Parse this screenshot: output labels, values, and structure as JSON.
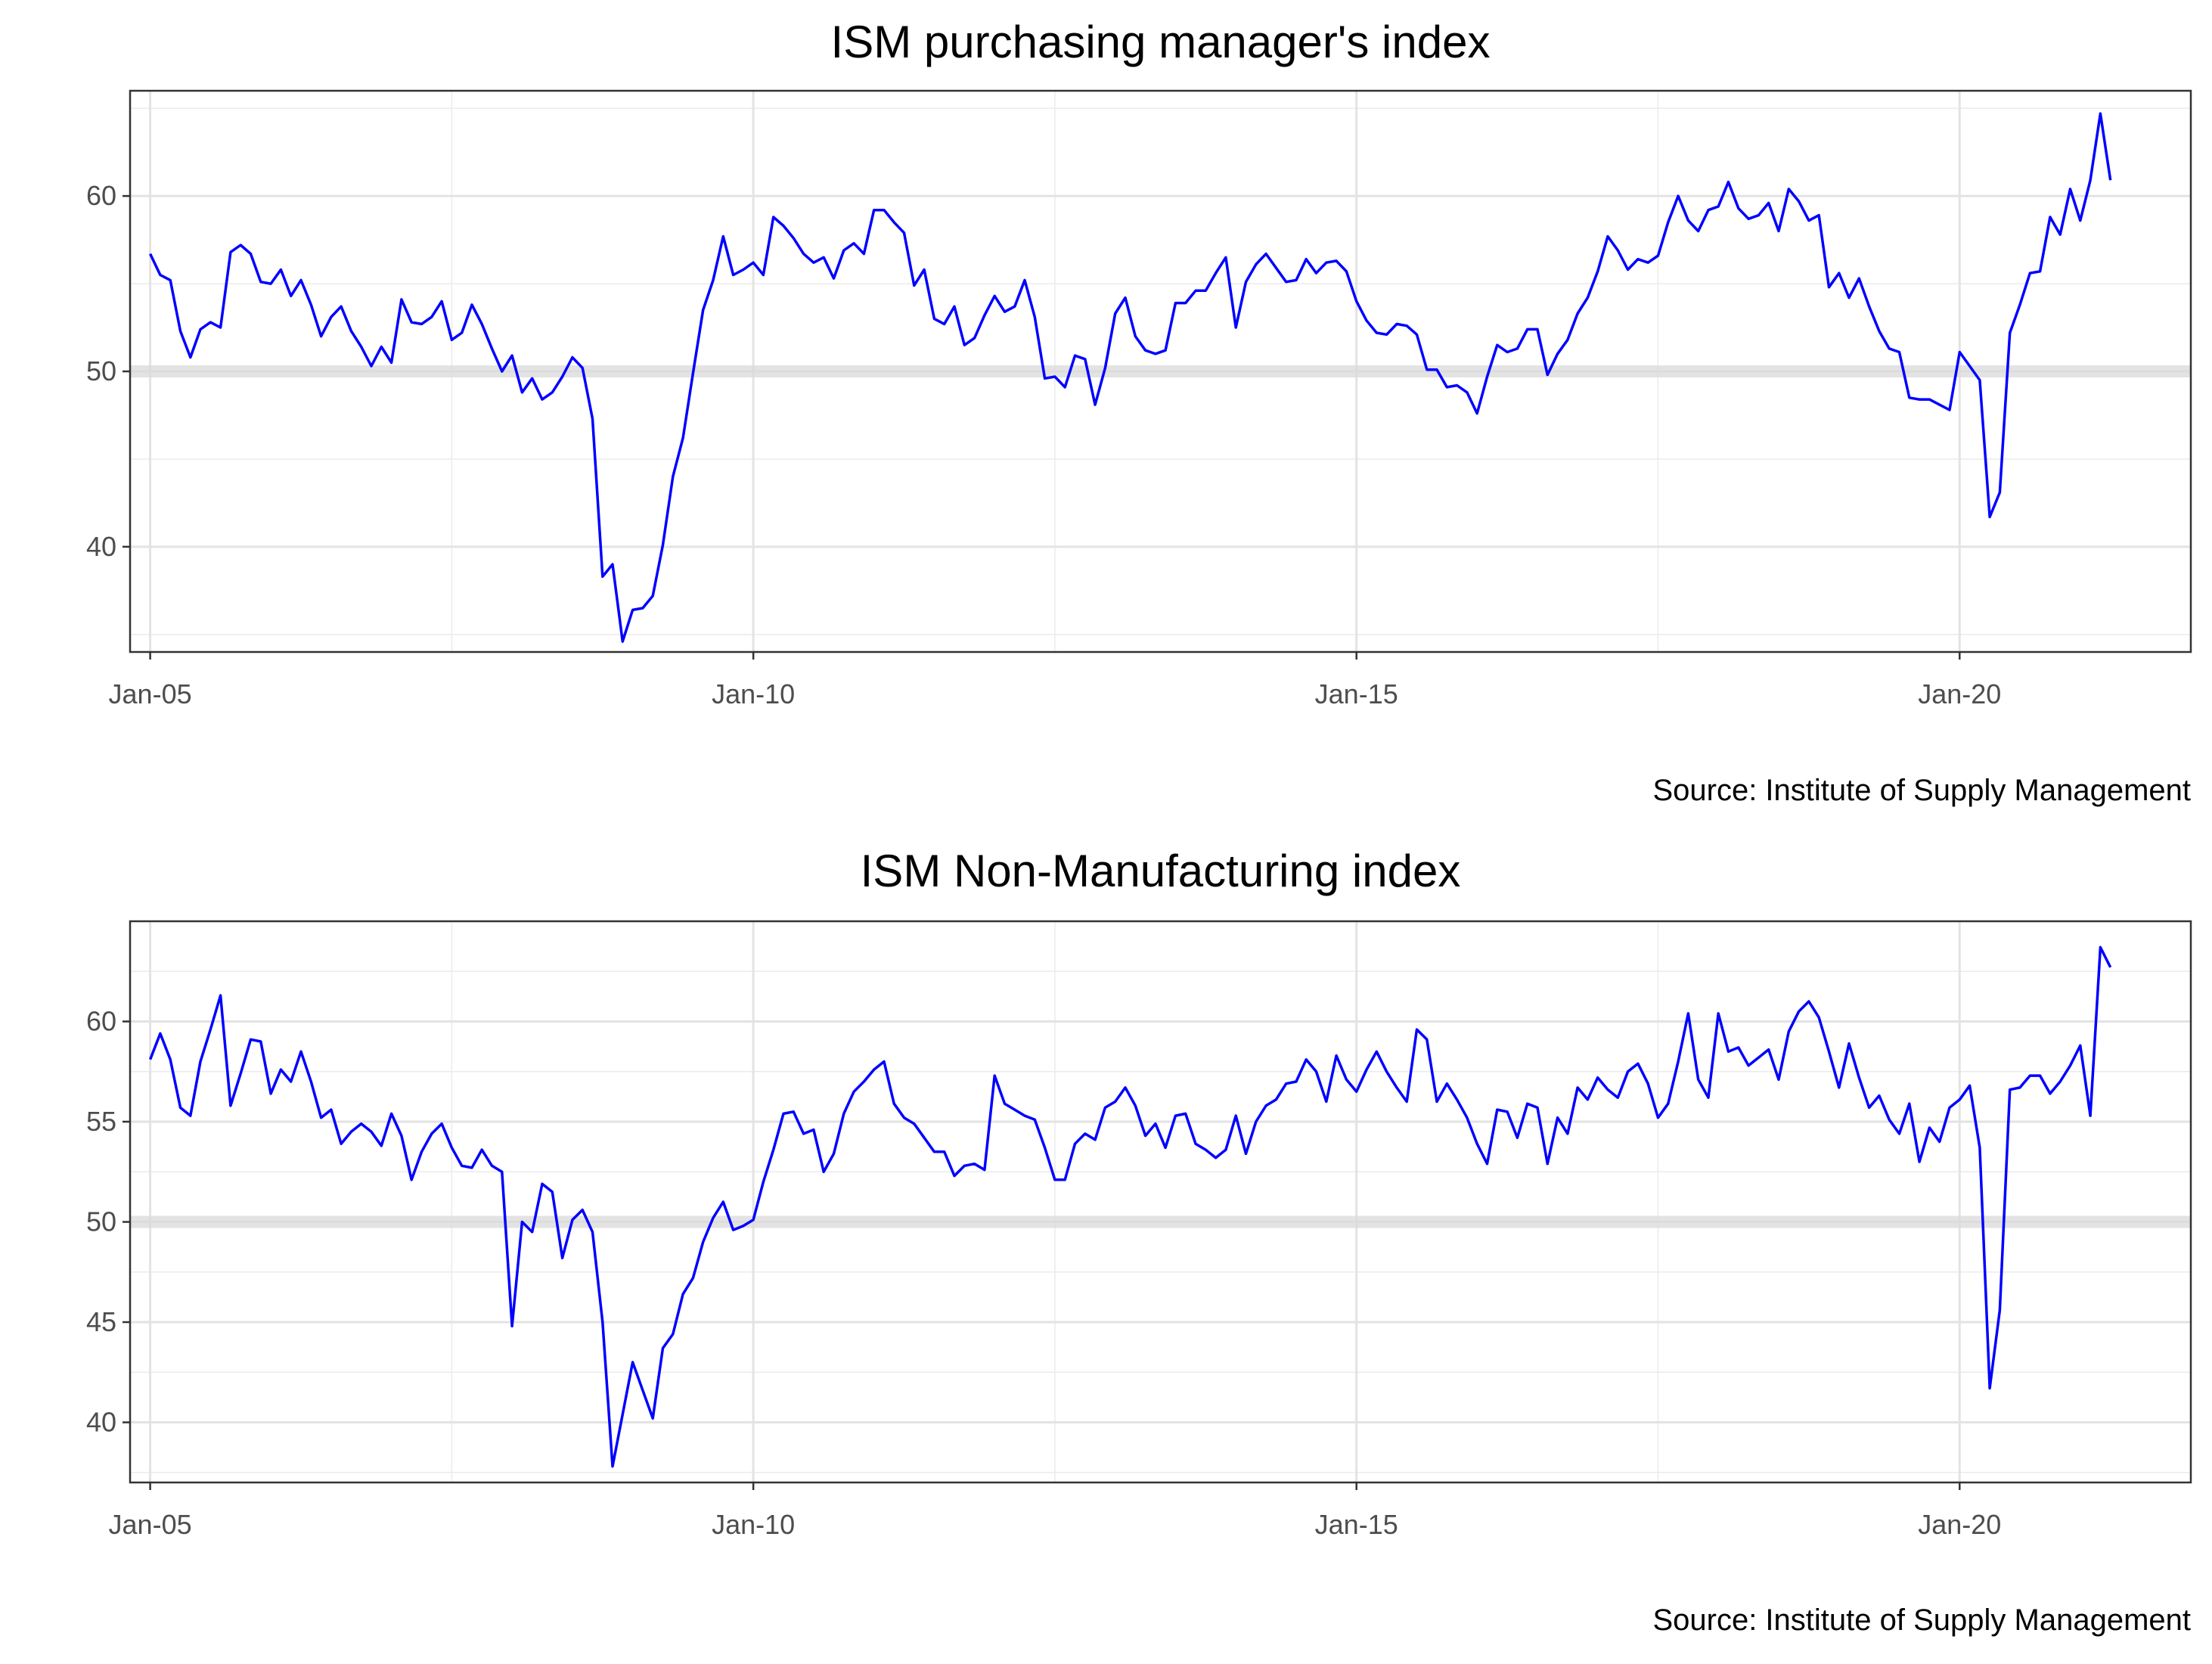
{
  "chart_data": [
    {
      "type": "line",
      "title": "ISM purchasing manager's index",
      "caption": "Source: Institute of Supply Management",
      "xlabel": "",
      "ylabel": "",
      "x_ticks": [
        "Jan-05",
        "Jan-10",
        "Jan-15",
        "Jan-20"
      ],
      "y_ticks": [
        40,
        50,
        60
      ],
      "ylim": [
        34,
        66
      ],
      "reference_line": 50,
      "grid": true,
      "line_color": "#0000ff",
      "series": [
        {
          "x_start": "2005-01",
          "values": [
            56.7,
            55.5,
            55.2,
            52.3,
            50.8,
            52.4,
            52.8,
            52.5,
            56.8,
            57.2,
            56.7,
            55.1,
            55.0,
            55.8,
            54.3,
            55.2,
            53.8,
            52.0,
            53.1,
            53.7,
            52.3,
            51.4,
            50.3,
            51.4,
            50.5,
            54.1,
            52.8,
            52.7,
            53.1,
            54.0,
            51.8,
            52.2,
            53.8,
            52.7,
            51.3,
            50.0,
            50.9,
            48.8,
            49.6,
            48.4,
            48.8,
            49.7,
            50.8,
            50.2,
            47.3,
            38.3,
            39.0,
            34.6,
            36.4,
            36.5,
            37.2,
            40.1,
            44.0,
            46.2,
            49.9,
            53.5,
            55.2,
            57.7,
            55.5,
            55.8,
            56.2,
            55.5,
            58.8,
            58.3,
            57.6,
            56.7,
            56.2,
            56.5,
            55.3,
            56.9,
            57.3,
            56.7,
            59.2,
            59.2,
            58.5,
            57.9,
            54.9,
            55.8,
            53.0,
            52.7,
            53.7,
            51.5,
            51.9,
            53.2,
            54.3,
            53.4,
            53.7,
            55.2,
            53.1,
            49.6,
            49.7,
            49.1,
            50.9,
            50.7,
            48.1,
            50.2,
            53.3,
            54.2,
            52.0,
            51.2,
            51.0,
            51.2,
            53.9,
            53.9,
            54.6,
            54.6,
            55.6,
            56.5,
            52.5,
            55.1,
            56.1,
            56.7,
            55.9,
            55.1,
            55.2,
            56.4,
            55.6,
            56.2,
            56.3,
            55.7,
            54.0,
            52.9,
            52.2,
            52.1,
            52.7,
            52.6,
            52.1,
            50.1,
            50.1,
            49.1,
            49.2,
            48.8,
            47.6,
            49.7,
            51.5,
            51.1,
            51.3,
            52.4,
            52.4,
            49.8,
            51.0,
            51.8,
            53.3,
            54.2,
            55.7,
            57.7,
            56.9,
            55.8,
            56.4,
            56.2,
            56.6,
            58.5,
            60.0,
            58.6,
            58.0,
            59.2,
            59.4,
            60.8,
            59.3,
            58.7,
            58.9,
            59.6,
            58.0,
            60.4,
            59.7,
            58.6,
            58.9,
            54.8,
            55.6,
            54.2,
            55.3,
            53.7,
            52.3,
            51.3,
            51.1,
            48.5,
            48.4,
            48.4,
            48.1,
            47.8,
            51.1,
            50.3,
            49.5,
            41.7,
            43.1,
            52.2,
            53.8,
            55.6,
            55.7,
            58.8,
            57.8,
            60.4,
            58.6,
            60.9,
            64.7,
            60.9
          ]
        }
      ]
    },
    {
      "type": "line",
      "title": "ISM Non-Manufacturing index",
      "caption": "Source: Institute of Supply Management",
      "xlabel": "",
      "ylabel": "",
      "x_ticks": [
        "Jan-05",
        "Jan-10",
        "Jan-15",
        "Jan-20"
      ],
      "y_ticks": [
        40,
        45,
        50,
        55,
        60
      ],
      "ylim": [
        37,
        65
      ],
      "reference_line": 50,
      "grid": true,
      "line_color": "#0000ff",
      "series": [
        {
          "x_start": "2005-01",
          "values": [
            58.1,
            59.4,
            58.1,
            55.7,
            55.3,
            58.0,
            59.6,
            61.3,
            55.8,
            57.4,
            59.1,
            59.0,
            56.4,
            57.6,
            57.0,
            58.5,
            57.0,
            55.2,
            55.6,
            53.9,
            54.5,
            54.9,
            54.5,
            53.8,
            55.4,
            54.3,
            52.1,
            53.5,
            54.4,
            54.9,
            53.7,
            52.8,
            52.7,
            53.6,
            52.8,
            52.5,
            44.8,
            50.0,
            49.5,
            51.9,
            51.5,
            48.2,
            50.1,
            50.6,
            49.5,
            45.0,
            37.8,
            40.4,
            43.0,
            41.6,
            40.2,
            43.7,
            44.4,
            46.4,
            47.2,
            49.0,
            50.2,
            51.0,
            49.6,
            49.8,
            50.1,
            52.0,
            53.6,
            55.4,
            55.5,
            54.4,
            54.6,
            52.5,
            53.4,
            55.4,
            56.5,
            57.0,
            57.6,
            58.0,
            55.9,
            55.2,
            54.9,
            54.2,
            53.5,
            53.5,
            52.3,
            52.8,
            52.9,
            52.6,
            57.3,
            55.9,
            55.6,
            55.3,
            55.1,
            53.7,
            52.1,
            52.1,
            53.9,
            54.4,
            54.1,
            55.7,
            56.0,
            56.7,
            55.8,
            54.3,
            54.9,
            53.7,
            55.3,
            55.4,
            53.9,
            53.6,
            53.2,
            53.6,
            55.3,
            53.4,
            55.0,
            55.8,
            56.1,
            56.9,
            57.0,
            58.1,
            57.5,
            56.0,
            58.3,
            57.1,
            56.5,
            57.6,
            58.5,
            57.5,
            56.7,
            56.0,
            59.6,
            59.1,
            56.0,
            56.9,
            56.1,
            55.2,
            53.9,
            52.9,
            55.6,
            55.5,
            54.2,
            55.9,
            55.7,
            52.9,
            55.2,
            54.4,
            56.7,
            56.1,
            57.2,
            56.6,
            56.2,
            57.5,
            57.9,
            56.9,
            55.2,
            55.9,
            58.0,
            60.4,
            57.1,
            56.2,
            60.4,
            58.5,
            58.7,
            57.8,
            58.2,
            58.6,
            57.1,
            59.5,
            60.5,
            61.0,
            60.2,
            58.5,
            56.7,
            58.9,
            57.2,
            55.7,
            56.3,
            55.1,
            54.4,
            55.9,
            53.0,
            54.7,
            54.0,
            55.7,
            56.1,
            56.8,
            53.7,
            41.7,
            45.6,
            56.6,
            56.7,
            57.3,
            57.3,
            56.4,
            57.0,
            57.8,
            58.8,
            55.3,
            63.7,
            62.7
          ]
        }
      ]
    }
  ]
}
